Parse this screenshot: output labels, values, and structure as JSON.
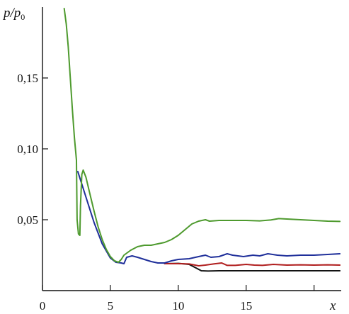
{
  "chart_data": {
    "type": "line",
    "title": "",
    "xlabel": "x",
    "ylabel": "p/p₀",
    "ylabel_main": "p/p",
    "ylabel_sub": "0",
    "xlim": [
      0,
      22
    ],
    "ylim": [
      0,
      0.2
    ],
    "grid": false,
    "legend": "none",
    "x_ticks": [
      0,
      5,
      10,
      15,
      20
    ],
    "x_tick_labels": [
      "0",
      "5",
      "10",
      "15"
    ],
    "y_ticks": [
      0.05,
      0.1,
      0.15
    ],
    "y_tick_labels": [
      "0,05",
      "0,10",
      "0,15"
    ],
    "series": [
      {
        "color": "#111111",
        "points": [
          [
            9.0,
            0.019
          ],
          [
            10.0,
            0.0192
          ],
          [
            10.8,
            0.0185
          ],
          [
            11.3,
            0.016
          ],
          [
            11.7,
            0.014
          ],
          [
            12.2,
            0.0138
          ],
          [
            13,
            0.014
          ],
          [
            14,
            0.014
          ],
          [
            15,
            0.014
          ],
          [
            16,
            0.014
          ],
          [
            17,
            0.014
          ],
          [
            18,
            0.014
          ],
          [
            19,
            0.014
          ],
          [
            20,
            0.014
          ],
          [
            21,
            0.014
          ],
          [
            21.9,
            0.014
          ]
        ]
      },
      {
        "color": "#b01e1e",
        "points": [
          [
            9.0,
            0.019
          ],
          [
            10.0,
            0.019
          ],
          [
            10.8,
            0.0188
          ],
          [
            11.5,
            0.0175
          ],
          [
            12.0,
            0.018
          ],
          [
            12.6,
            0.0188
          ],
          [
            13.2,
            0.0195
          ],
          [
            13.6,
            0.0178
          ],
          [
            14.2,
            0.0178
          ],
          [
            15,
            0.0185
          ],
          [
            15.6,
            0.018
          ],
          [
            16.2,
            0.0178
          ],
          [
            17,
            0.0185
          ],
          [
            18,
            0.018
          ],
          [
            19,
            0.0182
          ],
          [
            20,
            0.018
          ],
          [
            21,
            0.0182
          ],
          [
            21.9,
            0.018
          ]
        ]
      },
      {
        "color": "#1f2f9a",
        "points": [
          [
            2.6,
            0.084
          ],
          [
            3.2,
            0.066
          ],
          [
            3.8,
            0.048
          ],
          [
            4.4,
            0.033
          ],
          [
            5.0,
            0.023
          ],
          [
            5.4,
            0.02
          ],
          [
            5.8,
            0.0195
          ],
          [
            6.0,
            0.019
          ],
          [
            6.2,
            0.0235
          ],
          [
            6.6,
            0.0245
          ],
          [
            7.0,
            0.0235
          ],
          [
            7.5,
            0.022
          ],
          [
            8.0,
            0.0205
          ],
          [
            8.5,
            0.0195
          ],
          [
            9.0,
            0.0195
          ],
          [
            9.5,
            0.021
          ],
          [
            10.0,
            0.022
          ],
          [
            10.8,
            0.0225
          ],
          [
            11.5,
            0.024
          ],
          [
            12.0,
            0.025
          ],
          [
            12.4,
            0.0235
          ],
          [
            13.0,
            0.024
          ],
          [
            13.6,
            0.026
          ],
          [
            14.0,
            0.025
          ],
          [
            14.8,
            0.024
          ],
          [
            15.5,
            0.025
          ],
          [
            16.0,
            0.0245
          ],
          [
            16.6,
            0.026
          ],
          [
            17.3,
            0.025
          ],
          [
            18,
            0.0245
          ],
          [
            19,
            0.025
          ],
          [
            20,
            0.025
          ],
          [
            21,
            0.0255
          ],
          [
            21.9,
            0.026
          ]
        ]
      },
      {
        "color": "#4e9a2e",
        "points": [
          [
            1.6,
            0.199
          ],
          [
            1.75,
            0.188
          ],
          [
            1.9,
            0.172
          ],
          [
            2.05,
            0.15
          ],
          [
            2.2,
            0.128
          ],
          [
            2.35,
            0.108
          ],
          [
            2.5,
            0.092
          ],
          [
            2.55,
            0.05
          ],
          [
            2.65,
            0.04
          ],
          [
            2.75,
            0.039
          ],
          [
            2.8,
            0.06
          ],
          [
            2.9,
            0.082
          ],
          [
            3.0,
            0.085
          ],
          [
            3.2,
            0.08
          ],
          [
            3.5,
            0.068
          ],
          [
            3.8,
            0.056
          ],
          [
            4.1,
            0.045
          ],
          [
            4.4,
            0.036
          ],
          [
            4.7,
            0.029
          ],
          [
            5.0,
            0.024
          ],
          [
            5.3,
            0.021
          ],
          [
            5.6,
            0.02
          ],
          [
            5.8,
            0.022
          ],
          [
            6.0,
            0.025
          ],
          [
            6.5,
            0.0285
          ],
          [
            7.0,
            0.031
          ],
          [
            7.5,
            0.032
          ],
          [
            8.0,
            0.032
          ],
          [
            8.5,
            0.033
          ],
          [
            9.0,
            0.034
          ],
          [
            9.5,
            0.036
          ],
          [
            10.0,
            0.039
          ],
          [
            10.5,
            0.043
          ],
          [
            11.0,
            0.047
          ],
          [
            11.5,
            0.049
          ],
          [
            12.0,
            0.05
          ],
          [
            12.3,
            0.049
          ],
          [
            13.0,
            0.0495
          ],
          [
            14,
            0.0495
          ],
          [
            15,
            0.0495
          ],
          [
            16,
            0.0492
          ],
          [
            16.8,
            0.0498
          ],
          [
            17.4,
            0.0508
          ],
          [
            18,
            0.0505
          ],
          [
            19,
            0.05
          ],
          [
            20,
            0.0495
          ],
          [
            21,
            0.049
          ],
          [
            21.9,
            0.0488
          ]
        ]
      }
    ]
  }
}
